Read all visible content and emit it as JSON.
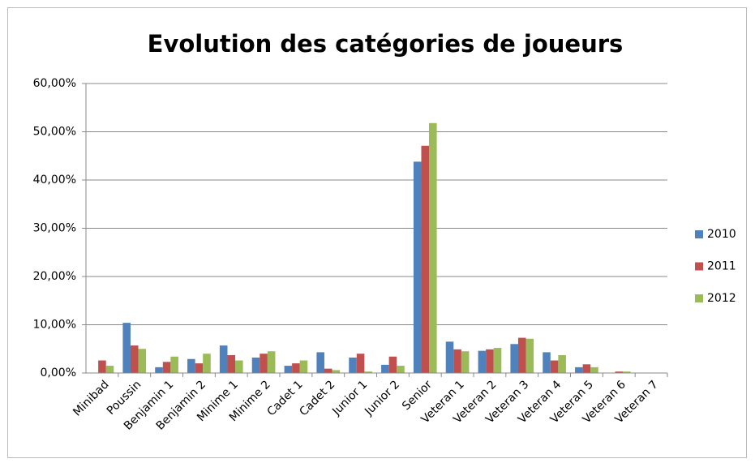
{
  "chart_data": {
    "type": "bar",
    "title": "Evolution des catégories de joueurs",
    "categories": [
      "Minibad",
      "Poussin",
      "Benjamin 1",
      "Benjamin 2",
      "Minime 1",
      "Minime 2",
      "Cadet 1",
      "Cadet 2",
      "Junior 1",
      "Junior 2",
      "Senior",
      "Veteran 1",
      "Veteran 2",
      "Veteran 3",
      "Veteran 4",
      "Veteran 5",
      "Veteran 6",
      "Veteran 7"
    ],
    "series": [
      {
        "name": "2010",
        "color": "#4f81bd",
        "values": [
          0,
          10.4,
          1.2,
          2.9,
          5.7,
          3.2,
          1.5,
          4.3,
          3.2,
          1.7,
          43.8,
          6.5,
          4.6,
          6.0,
          4.3,
          1.2,
          0,
          0
        ]
      },
      {
        "name": "2011",
        "color": "#c0504d",
        "values": [
          2.6,
          5.7,
          2.3,
          2.0,
          3.7,
          4.0,
          2.0,
          0.9,
          4.0,
          3.4,
          47.1,
          4.9,
          4.9,
          7.3,
          2.6,
          1.8,
          0.3,
          0
        ]
      },
      {
        "name": "2012",
        "color": "#9bbb59",
        "values": [
          1.5,
          5.0,
          3.4,
          4.0,
          2.6,
          4.5,
          2.6,
          0.6,
          0.3,
          1.5,
          51.8,
          4.5,
          5.2,
          7.1,
          3.7,
          1.2,
          0.3,
          0
        ]
      }
    ],
    "ylim": [
      0,
      60
    ],
    "yticks": [
      {
        "value": 0,
        "label": "0,00%"
      },
      {
        "value": 10,
        "label": "10,00%"
      },
      {
        "value": 20,
        "label": "20,00%"
      },
      {
        "value": 30,
        "label": "30,00%"
      },
      {
        "value": 40,
        "label": "40,00%"
      },
      {
        "value": 50,
        "label": "50,00%"
      },
      {
        "value": 60,
        "label": "60,00%"
      }
    ],
    "grid": true,
    "legend": "right"
  }
}
